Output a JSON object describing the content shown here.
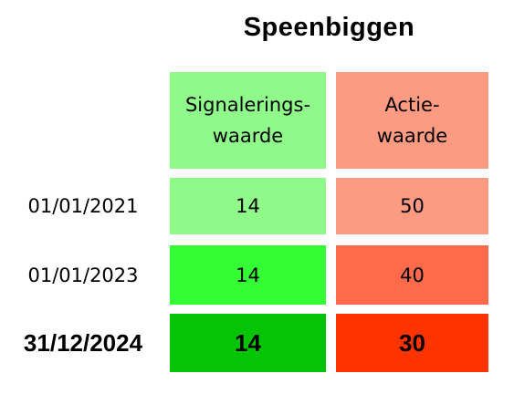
{
  "header": {
    "title": "Speenbiggen"
  },
  "table": {
    "columns": [
      [
        "Signalerings-",
        "waarde"
      ],
      [
        "Actie-",
        "waarde"
      ]
    ],
    "rows": [
      {
        "date": "01/01/2021",
        "values": [
          "14",
          "50"
        ]
      },
      {
        "date": "01/01/2023",
        "values": [
          "14",
          "40"
        ]
      },
      {
        "date": "31/12/2024",
        "values": [
          "14",
          "30"
        ]
      }
    ]
  }
}
